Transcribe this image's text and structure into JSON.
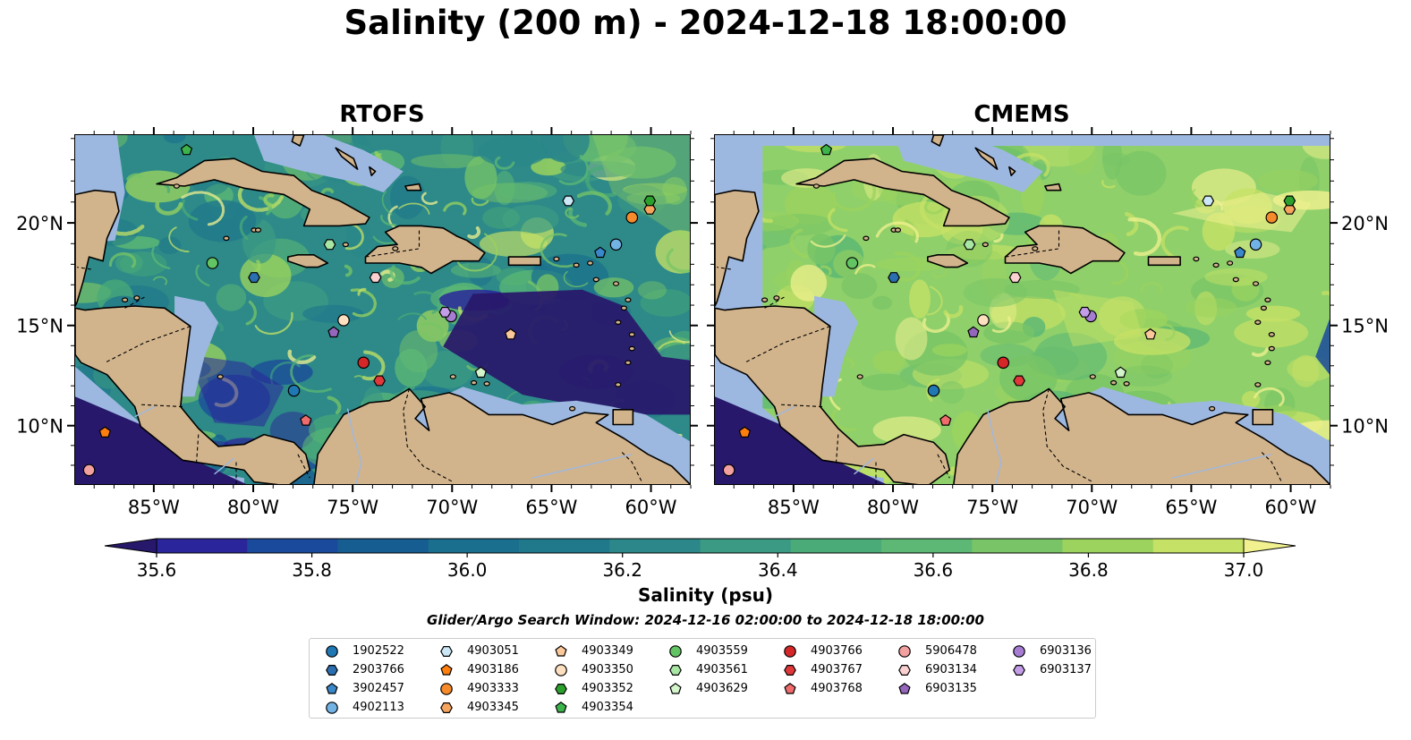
{
  "figure": {
    "suptitle": "Salinity (200 m) - 2024-12-18 18:00:00",
    "panels": [
      {
        "id": "rtofs",
        "title": "RTOFS"
      },
      {
        "id": "cmems",
        "title": "CMEMS"
      }
    ],
    "extent": {
      "lon": [
        -89,
        -58
      ],
      "lat": [
        7,
        24.2
      ]
    },
    "lon_ticks": [
      "85°W",
      "80°W",
      "75°W",
      "70°W",
      "65°W",
      "60°W"
    ],
    "lat_ticks": [
      "20°N",
      "15°N",
      "10°N"
    ],
    "colors": {
      "land": "#d2b48c",
      "shelf": "#9db8e0",
      "rtofs_ocean": "#2d8a88",
      "cmems_ocean": "#8fd06a"
    }
  },
  "colorbar": {
    "label": "Salinity (psu)",
    "min": 35.6,
    "max": 37.0,
    "tick_labels": [
      "35.6",
      "35.8",
      "36.0",
      "36.2",
      "36.4",
      "36.6",
      "36.8",
      "37.0"
    ],
    "colors": [
      "#28186b",
      "#2a259a",
      "#1a4a9b",
      "#165d91",
      "#1a6f8e",
      "#20798a",
      "#2b8789",
      "#3b9a83",
      "#4aaa78",
      "#5cb874",
      "#78c466",
      "#9bd35e",
      "#c5e166",
      "#f1f18f"
    ]
  },
  "search_window": "Glider/Argo Search Window: 2024-12-16 02:00:00 to 2024-12-18 18:00:00",
  "floats": [
    {
      "id": "1902522",
      "lon": -78.0,
      "lat": 11.8,
      "marker": "circle",
      "color": "#1f77b4"
    },
    {
      "id": "2903766",
      "lon": -80.0,
      "lat": 17.4,
      "marker": "hexagon",
      "color": "#2b6fb0"
    },
    {
      "id": "3902457",
      "lon": -62.6,
      "lat": 18.6,
      "marker": "pentagon",
      "color": "#3a87c9"
    },
    {
      "id": "4902113",
      "lon": -61.8,
      "lat": 19.0,
      "marker": "circle",
      "color": "#72b3e6"
    },
    {
      "id": "4903051",
      "lon": -64.2,
      "lat": 21.1,
      "marker": "hexagon",
      "color": "#cce8f7"
    },
    {
      "id": "4903186",
      "lon": -87.5,
      "lat": 9.7,
      "marker": "pentagon",
      "color": "#ff7f0e"
    },
    {
      "id": "4903333",
      "lon": -61.0,
      "lat": 20.3,
      "marker": "circle",
      "color": "#f58b2b"
    },
    {
      "id": "4903345",
      "lon": -60.1,
      "lat": 20.7,
      "marker": "hexagon",
      "color": "#f7a45e"
    },
    {
      "id": "4903349",
      "lon": -67.1,
      "lat": 14.6,
      "marker": "pentagon",
      "color": "#fbc89b"
    },
    {
      "id": "4903350",
      "lon": -75.5,
      "lat": 15.3,
      "marker": "circle",
      "color": "#fde0bf"
    },
    {
      "id": "4903352",
      "lon": -60.1,
      "lat": 21.1,
      "marker": "hexagon",
      "color": "#2ca02c"
    },
    {
      "id": "4903354",
      "lon": -83.4,
      "lat": 23.5,
      "marker": "pentagon",
      "color": "#3cb44b"
    },
    {
      "id": "4903559",
      "lon": -82.1,
      "lat": 18.1,
      "marker": "circle",
      "color": "#62c462"
    },
    {
      "id": "4903561",
      "lon": -76.2,
      "lat": 19.0,
      "marker": "hexagon",
      "color": "#a8e6a3"
    },
    {
      "id": "4903629",
      "lon": -68.6,
      "lat": 12.7,
      "marker": "pentagon",
      "color": "#d4f5cc"
    },
    {
      "id": "4903766",
      "lon": -74.5,
      "lat": 13.2,
      "marker": "circle",
      "color": "#d62728"
    },
    {
      "id": "4903767",
      "lon": -73.7,
      "lat": 12.3,
      "marker": "hexagon",
      "color": "#e0383a"
    },
    {
      "id": "4903768",
      "lon": -77.4,
      "lat": 10.3,
      "marker": "pentagon",
      "color": "#f06b6b"
    },
    {
      "id": "5906478",
      "lon": -88.3,
      "lat": 7.8,
      "marker": "circle",
      "color": "#f3a0a0"
    },
    {
      "id": "6903134",
      "lon": -73.9,
      "lat": 17.4,
      "marker": "hexagon",
      "color": "#fad0d0"
    },
    {
      "id": "6903135",
      "lon": -76.0,
      "lat": 14.7,
      "marker": "pentagon",
      "color": "#9467bd"
    },
    {
      "id": "6903136",
      "lon": -70.1,
      "lat": 15.5,
      "marker": "circle",
      "color": "#a77dd4"
    },
    {
      "id": "6903137",
      "lon": -70.4,
      "lat": 15.7,
      "marker": "hexagon",
      "color": "#c49de8"
    }
  ]
}
